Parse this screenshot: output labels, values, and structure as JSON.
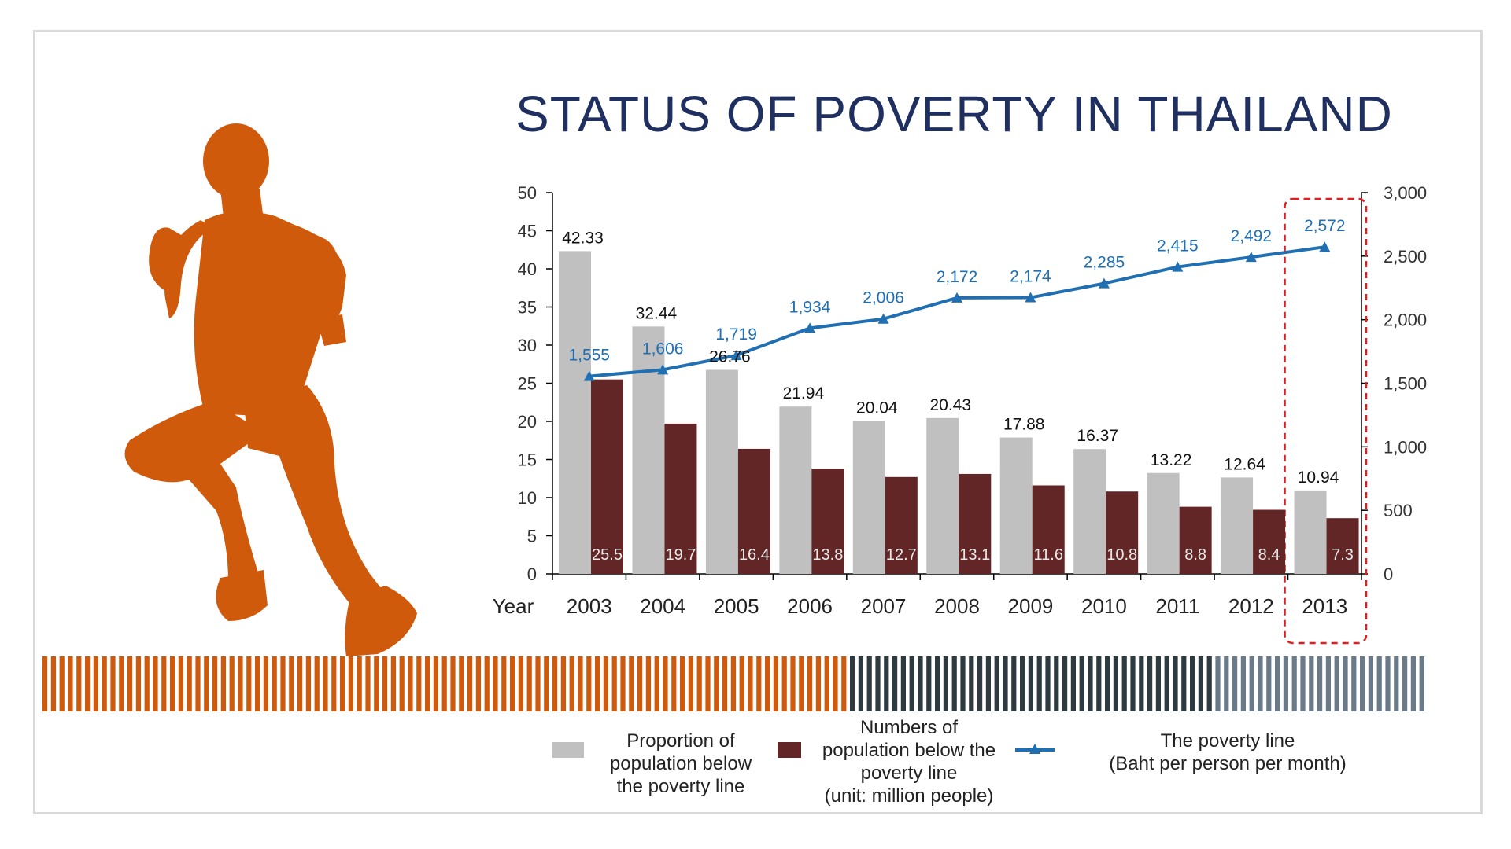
{
  "chart_data": {
    "type": "bar",
    "title": "STATUS OF POVERTY IN THAILAND",
    "xlabel": "Year",
    "categories": [
      "2003",
      "2004",
      "2005",
      "2006",
      "2007",
      "2008",
      "2009",
      "2010",
      "2011",
      "2012",
      "2013"
    ],
    "ylim_left": [
      0,
      50
    ],
    "ylim_right": [
      0,
      3000
    ],
    "yticks_left": [
      "0",
      "5",
      "10",
      "15",
      "20",
      "25",
      "30",
      "35",
      "40",
      "45",
      "50"
    ],
    "yticks_right": [
      "0",
      "500",
      "1,000",
      "1,500",
      "2,000",
      "2,500",
      "3,000"
    ],
    "series": [
      {
        "name": "Proportion of population below the poverty line",
        "kind": "bar",
        "axis": "left",
        "color": "#c0c0c0",
        "values": [
          42.33,
          32.44,
          26.76,
          21.94,
          20.04,
          20.43,
          17.88,
          16.37,
          13.22,
          12.64,
          10.94
        ],
        "labels": [
          "42.33",
          "32.44",
          "26.76",
          "21.94",
          "20.04",
          "20.43",
          "17.88",
          "16.37",
          "13.22",
          "12.64",
          "10.94"
        ]
      },
      {
        "name": "Numbers of population below the poverty line (unit: million people)",
        "kind": "bar",
        "axis": "left",
        "color": "#632627",
        "values": [
          25.5,
          19.7,
          16.4,
          13.8,
          12.7,
          13.1,
          11.6,
          10.8,
          8.8,
          8.4,
          7.3
        ],
        "labels": [
          "25.5",
          "19.7",
          "16.4",
          "13.8",
          "12.7",
          "13.1",
          "11.6",
          "10.8",
          "8.8",
          "8.4",
          "7.3"
        ]
      },
      {
        "name": "The poverty line (Baht per person per month)",
        "kind": "line",
        "axis": "right",
        "color": "#1f6fb2",
        "values": [
          1555,
          1606,
          1719,
          1934,
          2006,
          2172,
          2174,
          2285,
          2415,
          2492,
          2572
        ],
        "labels": [
          "1,555",
          "1,606",
          "1,719",
          "1,934",
          "2,006",
          "2,172",
          "2,174",
          "2,285",
          "2,415",
          "2,492",
          "2,572"
        ]
      }
    ],
    "highlight_category": "2013",
    "legend": {
      "position": "bottom",
      "bar1": [
        "Proportion of",
        "population below",
        "the poverty line"
      ],
      "bar2": [
        "Numbers of",
        "population below the",
        "poverty line",
        "(unit: million people)"
      ],
      "line": [
        "The poverty line",
        "(Baht per person per month)"
      ]
    }
  },
  "colors": {
    "runner": "#d05a0c",
    "stripe_orange": "#d05a0c",
    "stripe_dark": "#2d3a3f",
    "stripe_slate": "#6a7a88",
    "title": "#1f2f5f",
    "highlight": "#e02020"
  },
  "icons": {
    "runner": "runner-silhouette-icon"
  }
}
